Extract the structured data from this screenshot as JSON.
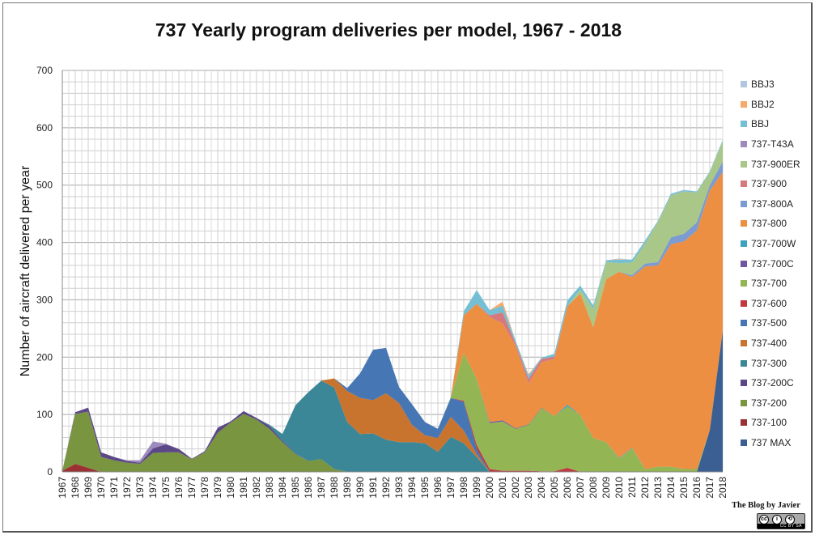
{
  "chart_data": {
    "type": "area",
    "stacked": true,
    "title": "737 Yearly program deliveries  per model, 1967 - 2018",
    "xlabel": "",
    "ylabel": "Number  of aircraft delivered per year",
    "ylim": [
      0,
      700
    ],
    "yticks": [
      0,
      100,
      200,
      300,
      400,
      500,
      600,
      700
    ],
    "grid": true,
    "legend_position": "right",
    "categories": [
      "1967",
      "1968",
      "1969",
      "1970",
      "1971",
      "1972",
      "1973",
      "1974",
      "1975",
      "1976",
      "1977",
      "1978",
      "1979",
      "1980",
      "1981",
      "1982",
      "1983",
      "1984",
      "1985",
      "1986",
      "1987",
      "1988",
      "1989",
      "1990",
      "1991",
      "1992",
      "1993",
      "1994",
      "1995",
      "1996",
      "1997",
      "1998",
      "1999",
      "2000",
      "2001",
      "2002",
      "2003",
      "2004",
      "2005",
      "2006",
      "2007",
      "2008",
      "2009",
      "2010",
      "2011",
      "2012",
      "2013",
      "2014",
      "2015",
      "2016",
      "2017",
      "2018"
    ],
    "series": [
      {
        "name": "737 MAX",
        "color": "#3b5f92",
        "values": [
          0,
          0,
          0,
          0,
          0,
          0,
          0,
          0,
          0,
          0,
          0,
          0,
          0,
          0,
          0,
          0,
          0,
          0,
          0,
          0,
          0,
          0,
          0,
          0,
          0,
          0,
          0,
          0,
          0,
          0,
          0,
          0,
          0,
          0,
          0,
          0,
          0,
          0,
          0,
          0,
          0,
          0,
          0,
          0,
          0,
          0,
          0,
          0,
          0,
          0,
          73,
          247
        ]
      },
      {
        "name": "737-100",
        "color": "#9c3134",
        "values": [
          2,
          14,
          7,
          0,
          0,
          0,
          0,
          0,
          0,
          0,
          0,
          0,
          0,
          0,
          0,
          0,
          0,
          0,
          0,
          0,
          0,
          0,
          0,
          0,
          0,
          0,
          0,
          0,
          0,
          0,
          0,
          0,
          0,
          0,
          0,
          0,
          0,
          0,
          0,
          0,
          0,
          0,
          0,
          0,
          0,
          0,
          0,
          0,
          0,
          0,
          0,
          0
        ]
      },
      {
        "name": "737-200",
        "color": "#79953f",
        "values": [
          0,
          87,
          98,
          26,
          20,
          16,
          14,
          33,
          34,
          34,
          22,
          34,
          68,
          86,
          101,
          91,
          75,
          52,
          31,
          19,
          22,
          5,
          0,
          0,
          0,
          0,
          0,
          0,
          0,
          0,
          0,
          0,
          0,
          0,
          0,
          0,
          0,
          0,
          0,
          0,
          0,
          0,
          0,
          0,
          0,
          0,
          0,
          0,
          0,
          0,
          0,
          0
        ]
      },
      {
        "name": "737-200C",
        "color": "#5c4887",
        "values": [
          0,
          3,
          7,
          8,
          6,
          3,
          2,
          8,
          14,
          6,
          1,
          2,
          9,
          2,
          5,
          3,
          5,
          2,
          1,
          0,
          0,
          0,
          0,
          0,
          0,
          0,
          0,
          0,
          0,
          0,
          0,
          0,
          0,
          0,
          0,
          0,
          0,
          0,
          0,
          0,
          0,
          0,
          0,
          0,
          0,
          0,
          0,
          0,
          0,
          0,
          0,
          0
        ]
      },
      {
        "name": "737-300",
        "color": "#3b8798",
        "values": [
          0,
          0,
          0,
          0,
          0,
          0,
          0,
          0,
          0,
          0,
          0,
          0,
          0,
          0,
          0,
          0,
          2,
          12,
          84,
          120,
          137,
          142,
          87,
          66,
          67,
          56,
          52,
          52,
          50,
          35,
          61,
          50,
          26,
          0,
          0,
          0,
          0,
          0,
          0,
          0,
          0,
          0,
          0,
          0,
          0,
          0,
          0,
          0,
          0,
          0,
          0,
          0
        ]
      },
      {
        "name": "737-400",
        "color": "#c8742f",
        "values": [
          0,
          0,
          0,
          0,
          0,
          0,
          0,
          0,
          0,
          0,
          0,
          0,
          0,
          0,
          0,
          0,
          0,
          0,
          0,
          0,
          0,
          16,
          54,
          63,
          58,
          81,
          68,
          30,
          14,
          24,
          35,
          22,
          5,
          0,
          0,
          0,
          0,
          0,
          0,
          0,
          0,
          0,
          0,
          0,
          0,
          0,
          0,
          0,
          0,
          0,
          0,
          0
        ]
      },
      {
        "name": "737-500",
        "color": "#4677b4",
        "values": [
          0,
          0,
          0,
          0,
          0,
          0,
          0,
          0,
          0,
          0,
          0,
          0,
          0,
          0,
          0,
          0,
          0,
          0,
          0,
          0,
          0,
          0,
          5,
          43,
          88,
          79,
          28,
          36,
          23,
          16,
          33,
          50,
          9,
          0,
          0,
          0,
          0,
          0,
          0,
          0,
          0,
          0,
          0,
          0,
          0,
          0,
          0,
          0,
          0,
          0,
          0,
          0
        ]
      },
      {
        "name": "737-600",
        "color": "#c0393f",
        "values": [
          0,
          0,
          0,
          0,
          0,
          0,
          0,
          0,
          0,
          0,
          0,
          0,
          0,
          0,
          0,
          0,
          0,
          0,
          0,
          0,
          0,
          0,
          0,
          0,
          0,
          0,
          0,
          0,
          0,
          0,
          0,
          2,
          7,
          5,
          2,
          2,
          2,
          1,
          1,
          7,
          0,
          0,
          0,
          0,
          0,
          0,
          0,
          0,
          0,
          0,
          0,
          0
        ]
      },
      {
        "name": "737-700",
        "color": "#93b554",
        "values": [
          0,
          0,
          0,
          0,
          0,
          0,
          0,
          0,
          0,
          0,
          0,
          0,
          0,
          0,
          0,
          0,
          0,
          0,
          0,
          0,
          0,
          0,
          0,
          0,
          0,
          0,
          0,
          0,
          0,
          0,
          1,
          83,
          115,
          80,
          86,
          73,
          80,
          110,
          96,
          107,
          99,
          59,
          52,
          23,
          41,
          5,
          9,
          9,
          5,
          5,
          0,
          0
        ]
      },
      {
        "name": "737-700C",
        "color": "#7055a0",
        "values": [
          0,
          0,
          0,
          0,
          0,
          0,
          0,
          0,
          0,
          0,
          0,
          0,
          0,
          0,
          0,
          0,
          0,
          0,
          0,
          0,
          0,
          0,
          0,
          0,
          0,
          0,
          0,
          0,
          0,
          0,
          0,
          0,
          0,
          2,
          2,
          1,
          1,
          1,
          0,
          0,
          0,
          0,
          0,
          0,
          0,
          0,
          0,
          0,
          0,
          0,
          0,
          0
        ]
      },
      {
        "name": "737-700W",
        "color": "#3aa3bd",
        "values": [
          0,
          0,
          0,
          0,
          0,
          0,
          0,
          0,
          0,
          0,
          0,
          0,
          0,
          0,
          0,
          0,
          0,
          0,
          0,
          0,
          0,
          0,
          0,
          0,
          0,
          0,
          0,
          0,
          0,
          0,
          0,
          0,
          0,
          0,
          0,
          0,
          0,
          0,
          0,
          3,
          0,
          0,
          0,
          1,
          1,
          0,
          0,
          0,
          0,
          0,
          0,
          0
        ]
      },
      {
        "name": "737-800",
        "color": "#ec8f42",
        "values": [
          0,
          0,
          0,
          0,
          0,
          0,
          0,
          0,
          0,
          0,
          0,
          0,
          0,
          0,
          0,
          0,
          0,
          0,
          0,
          0,
          0,
          0,
          0,
          0,
          0,
          0,
          0,
          0,
          0,
          0,
          0,
          66,
          131,
          183,
          169,
          144,
          71,
          79,
          100,
          172,
          212,
          193,
          284,
          325,
          298,
          353,
          351,
          388,
          397,
          416,
          418,
          276
        ]
      },
      {
        "name": "737-800A",
        "color": "#7b9bd1",
        "values": [
          0,
          0,
          0,
          0,
          0,
          0,
          0,
          0,
          0,
          0,
          0,
          0,
          0,
          0,
          0,
          0,
          0,
          0,
          0,
          0,
          0,
          0,
          0,
          0,
          0,
          0,
          0,
          0,
          0,
          0,
          0,
          0,
          0,
          0,
          0,
          0,
          0,
          0,
          0,
          0,
          0,
          0,
          0,
          0,
          3,
          5,
          6,
          12,
          13,
          14,
          9,
          18
        ]
      },
      {
        "name": "737-900",
        "color": "#d6787c",
        "values": [
          0,
          0,
          0,
          0,
          0,
          0,
          0,
          0,
          0,
          0,
          0,
          0,
          0,
          0,
          0,
          0,
          0,
          0,
          0,
          0,
          0,
          0,
          0,
          0,
          0,
          0,
          0,
          0,
          0,
          0,
          0,
          0,
          0,
          3,
          19,
          4,
          8,
          6,
          4,
          0,
          0,
          0,
          0,
          0,
          0,
          0,
          0,
          0,
          0,
          0,
          0,
          0
        ]
      },
      {
        "name": "737-900ER",
        "color": "#a9c789",
        "values": [
          0,
          0,
          0,
          0,
          0,
          0,
          0,
          0,
          0,
          0,
          0,
          0,
          0,
          0,
          0,
          0,
          0,
          0,
          0,
          0,
          0,
          0,
          0,
          0,
          0,
          0,
          0,
          0,
          0,
          0,
          0,
          0,
          0,
          0,
          0,
          0,
          0,
          0,
          0,
          0,
          7,
          32,
          30,
          15,
          22,
          35,
          70,
          73,
          74,
          52,
          22,
          36
        ]
      },
      {
        "name": "737-T43A",
        "color": "#9d8bbd",
        "values": [
          0,
          0,
          0,
          0,
          0,
          1,
          4,
          12,
          1,
          0,
          0,
          0,
          0,
          0,
          0,
          0,
          0,
          0,
          0,
          0,
          0,
          0,
          0,
          0,
          0,
          0,
          0,
          0,
          0,
          0,
          0,
          0,
          0,
          0,
          0,
          0,
          0,
          0,
          0,
          0,
          0,
          0,
          0,
          0,
          0,
          0,
          0,
          0,
          0,
          0,
          0,
          0
        ]
      },
      {
        "name": "BBJ",
        "color": "#74bfd4",
        "values": [
          0,
          0,
          0,
          0,
          0,
          0,
          0,
          0,
          0,
          0,
          0,
          0,
          0,
          0,
          0,
          0,
          0,
          0,
          0,
          0,
          0,
          0,
          0,
          0,
          0,
          0,
          0,
          0,
          0,
          0,
          0,
          7,
          24,
          9,
          12,
          5,
          6,
          2,
          5,
          10,
          7,
          6,
          3,
          6,
          5,
          5,
          2,
          3,
          2,
          2,
          2,
          2
        ]
      },
      {
        "name": "BBJ2",
        "color": "#f7a96b",
        "values": [
          0,
          0,
          0,
          0,
          0,
          0,
          0,
          0,
          0,
          0,
          0,
          0,
          0,
          0,
          0,
          0,
          0,
          0,
          0,
          0,
          0,
          0,
          0,
          0,
          0,
          0,
          0,
          0,
          0,
          0,
          0,
          0,
          0,
          0,
          7,
          0,
          2,
          0,
          0,
          0,
          0,
          0,
          0,
          1,
          0,
          0,
          0,
          0,
          0,
          0,
          0,
          0
        ]
      },
      {
        "name": "BBJ3",
        "color": "#b3c6e0",
        "values": [
          0,
          0,
          0,
          0,
          0,
          0,
          0,
          0,
          0,
          0,
          0,
          0,
          0,
          0,
          0,
          0,
          0,
          0,
          0,
          0,
          0,
          0,
          0,
          0,
          0,
          0,
          0,
          0,
          0,
          0,
          0,
          0,
          0,
          0,
          0,
          0,
          0,
          0,
          0,
          0,
          0,
          0,
          0,
          1,
          0,
          0,
          0,
          0,
          1,
          0,
          0,
          0
        ]
      }
    ]
  },
  "credit": "The Blog by Javier",
  "license_badge": "cc by sa"
}
